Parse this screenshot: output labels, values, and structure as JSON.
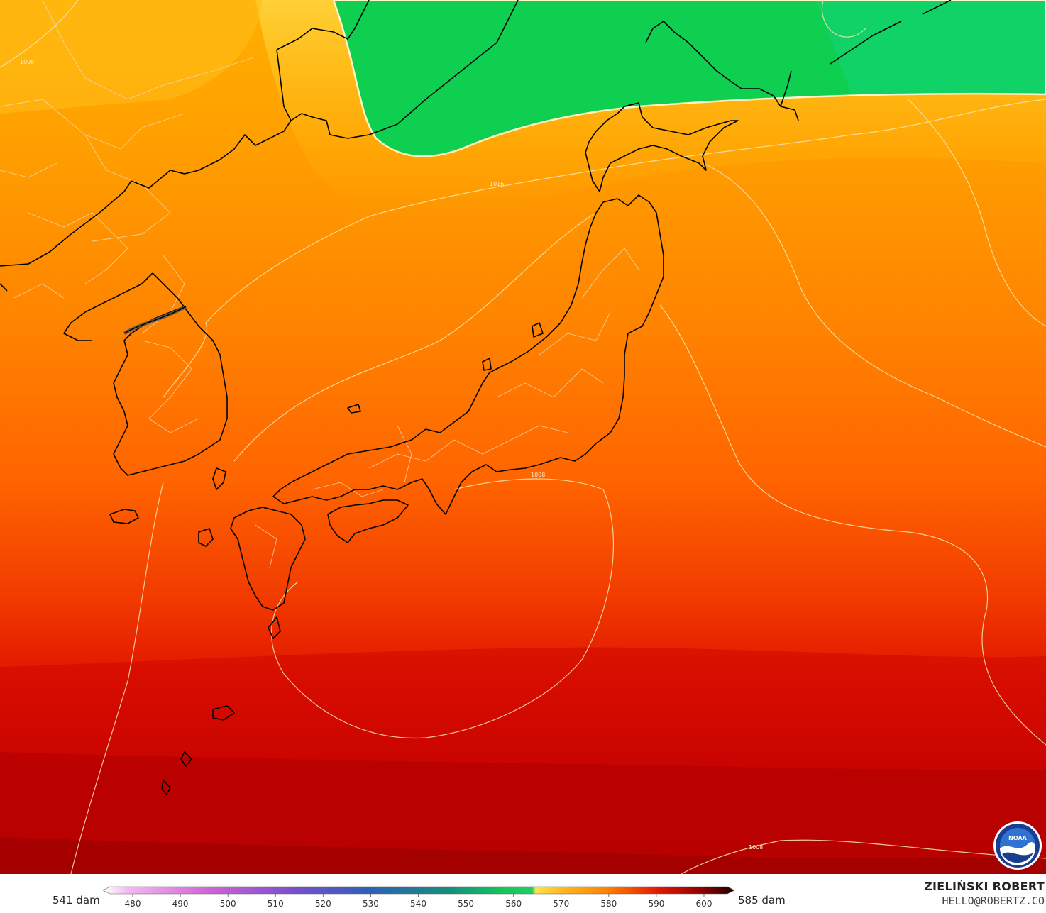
{
  "map": {
    "region": "Japan, Korea and NW Pacific",
    "field_units": "dam",
    "colors": {
      "green": "#0fcf50",
      "yellow": "#ffd23a",
      "orange": "#ff8a00",
      "red": "#e01400",
      "dark_red": "#a50000",
      "coastline": "#000000",
      "contour": "#f5e6b4"
    },
    "contour_labels": [
      "1016",
      "1008",
      "1008",
      "1008"
    ]
  },
  "legend": {
    "min_label": "541 dam",
    "max_label": "585 dam",
    "ticks": [
      "480",
      "490",
      "500",
      "510",
      "520",
      "530",
      "540",
      "550",
      "560",
      "570",
      "580",
      "590",
      "600"
    ],
    "stops": [
      {
        "offset": 0.0,
        "color": "#ffffff"
      },
      {
        "offset": 0.04,
        "color": "#f4b7f2"
      },
      {
        "offset": 0.17,
        "color": "#cf63d6"
      },
      {
        "offset": 0.3,
        "color": "#7a4fcf"
      },
      {
        "offset": 0.42,
        "color": "#2f5fb8"
      },
      {
        "offset": 0.55,
        "color": "#168f7f"
      },
      {
        "offset": 0.63,
        "color": "#12c45a"
      },
      {
        "offset": 0.68,
        "color": "#1fd160"
      },
      {
        "offset": 0.685,
        "color": "#ffe14a"
      },
      {
        "offset": 0.72,
        "color": "#ffc020"
      },
      {
        "offset": 0.8,
        "color": "#ff7f00"
      },
      {
        "offset": 0.88,
        "color": "#e51700"
      },
      {
        "offset": 0.95,
        "color": "#8c0000"
      },
      {
        "offset": 1.0,
        "color": "#1c0000"
      }
    ]
  },
  "credit": {
    "name": "ZIELIŃSKI ROBERT",
    "email": "HELLO@ROBERTZ.CO"
  },
  "logo": {
    "text": "NOAA",
    "icon": "noaa-logo-icon"
  }
}
